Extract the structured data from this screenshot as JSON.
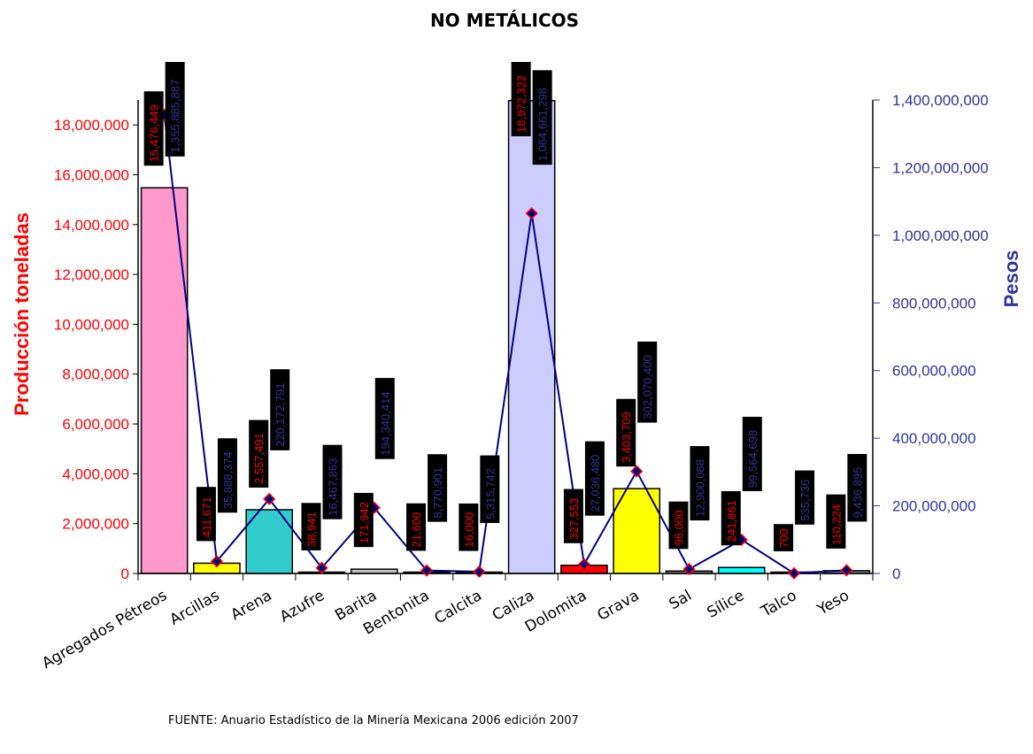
{
  "chart_data": {
    "type": "bar",
    "title": "NO METÁLICOS",
    "ylabel": "Producción toneladas",
    "y2label": "Pesos",
    "source": "FUENTE: Anuario Estadístico de la Minería Mexicana 2006 edición 2007",
    "categories": [
      "Agregados Pétreos",
      "Arcillas",
      "Arena",
      "Azufre",
      "Barita",
      "Bentonita",
      "Calcita",
      "Caliza",
      "Dolomita",
      "Grava",
      "Sal",
      "Sílice",
      "Talco",
      "Yeso"
    ],
    "ylim": [
      0,
      19000000
    ],
    "y2lim": [
      0,
      1400000000
    ],
    "yticks": [
      "0",
      "2,000,000",
      "4,000,000",
      "6,000,000",
      "8,000,000",
      "10,000,000",
      "12,000,000",
      "14,000,000",
      "16,000,000",
      "18,000,000"
    ],
    "y2ticks": [
      "0",
      "200,000,000",
      "400,000,000",
      "600,000,000",
      "800,000,000",
      "1,000,000,000",
      "1,200,000,000",
      "1,400,000,000"
    ],
    "series": [
      {
        "name": "Producción toneladas",
        "kind": "bar",
        "axis": "left",
        "values": [
          15476449,
          411671,
          2557491,
          38941,
          171942,
          21600,
          16000,
          18972322,
          327553,
          3403709,
          96000,
          241861,
          700,
          110224
        ],
        "labels": [
          "15,476,449",
          "411,671",
          "2,557,491",
          "38,941",
          "171,942",
          "21,600",
          "16,000",
          "18,972,322",
          "327,553",
          "3,403,709",
          "96,000",
          "241,861",
          "700",
          "110,224"
        ],
        "colors": [
          "#ff99cc",
          "#ffff00",
          "#33cccc",
          "#ffffff",
          "#c0c0c0",
          "#ffffff",
          "#ffffff",
          "#ccccff",
          "#ff0000",
          "#ffff00",
          "#808080",
          "#00ffff",
          "#ffffff",
          "#808080"
        ]
      },
      {
        "name": "Pesos",
        "kind": "line",
        "axis": "right",
        "values": [
          1355885887,
          35888374,
          220172791,
          16467863,
          194340414,
          8770901,
          5315742,
          1064661298,
          27036480,
          302070400,
          12900088,
          99564698,
          535736,
          9436895
        ],
        "labels": [
          "1,355,885,887",
          "35,888,374",
          "220,172,791",
          "16,467,863",
          "194,340,414",
          "8,770,901",
          "5,315,742",
          "1,064,661,298",
          "27,036,480",
          "302,070,400",
          "12,900,088",
          "99,564,698",
          "535,736",
          "9,436,895"
        ],
        "color": "#000080"
      }
    ]
  }
}
